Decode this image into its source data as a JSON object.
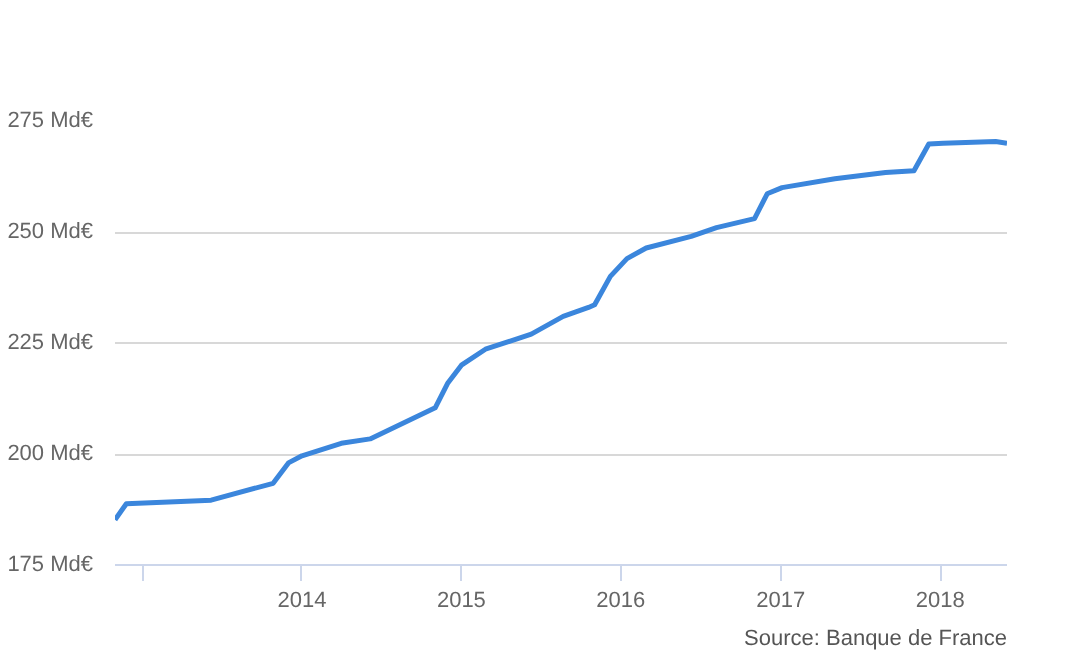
{
  "chart_data": {
    "type": "line",
    "x": [
      "2012-10-30",
      "2012-11-25",
      "2013-06-07",
      "2013-10-27",
      "2013-12-01",
      "2014-01-01",
      "2014-04-01",
      "2014-06-06",
      "2014-11-02",
      "2014-12-01",
      "2015-01-01",
      "2015-02-25",
      "2015-06-10",
      "2015-08-22",
      "2015-10-19",
      "2015-11-02",
      "2015-12-08",
      "2016-01-15",
      "2016-02-28",
      "2016-06-10",
      "2016-08-07",
      "2016-11-02",
      "2016-12-01",
      "2017-01-04",
      "2017-05-05",
      "2017-08-29",
      "2017-11-02",
      "2017-12-06",
      "2018-01-08",
      "2018-05-08",
      "2018-06-03"
    ],
    "series": [
      {
        "color": "#3b86dc",
        "values": [
          185.2,
          188.8,
          189.6,
          193.4,
          198,
          199.6,
          202.4,
          203.4,
          210.4,
          216,
          220,
          223.6,
          227,
          231,
          233,
          233.6,
          240,
          244,
          246.4,
          249,
          251,
          253,
          258.6,
          260,
          262,
          263.4,
          263.8,
          269.8,
          270,
          270.4,
          270
        ]
      }
    ],
    "xlim": [
      "2012-10-30",
      "2018-06-03"
    ],
    "xticks": [
      {
        "value": "2013",
        "label": null
      },
      {
        "value": "2014",
        "label": "2014"
      },
      {
        "value": "2015",
        "label": "2015"
      },
      {
        "value": "2016",
        "label": "2016"
      },
      {
        "value": "2017",
        "label": "2017"
      },
      {
        "value": "2018",
        "label": "2018"
      }
    ],
    "ylim": [
      175,
      275
    ],
    "yticks": [
      {
        "value": 175,
        "label": "175 Md€"
      },
      {
        "value": 200,
        "label": "200 Md€"
      },
      {
        "value": 225,
        "label": "225 Md€"
      },
      {
        "value": 250,
        "label": "250 Md€"
      },
      {
        "value": 275,
        "label": "275 Md€"
      }
    ],
    "grid": "y",
    "marker": "none",
    "line_style": "solid",
    "annotations": [
      "Source: Banque de France"
    ]
  }
}
